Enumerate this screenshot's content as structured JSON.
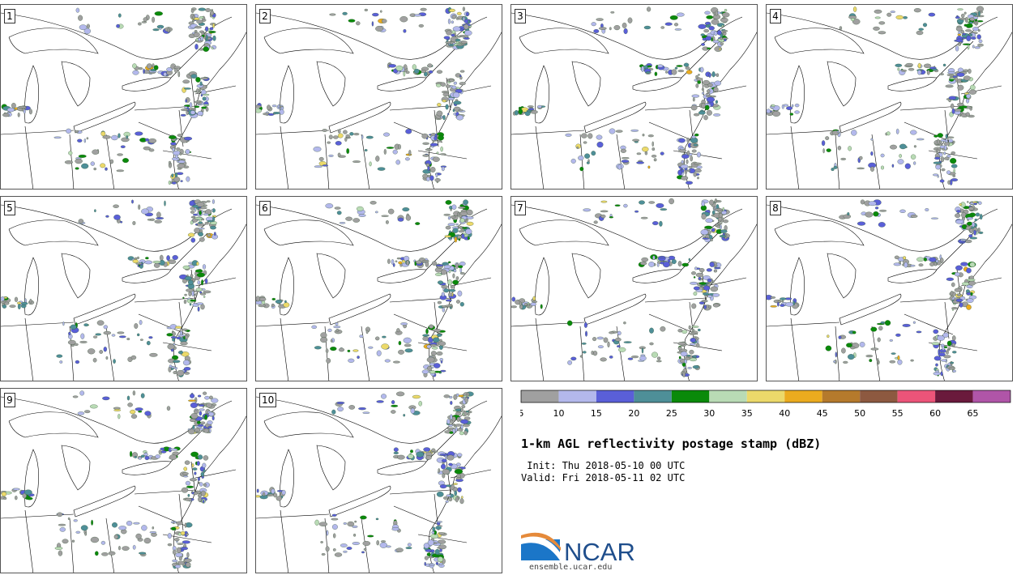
{
  "panels": [
    {
      "label": "1"
    },
    {
      "label": "2"
    },
    {
      "label": "3"
    },
    {
      "label": "4"
    },
    {
      "label": "5"
    },
    {
      "label": "6"
    },
    {
      "label": "7"
    },
    {
      "label": "8"
    },
    {
      "label": "9"
    },
    {
      "label": "10"
    }
  ],
  "colorbar": {
    "tick_labels": [
      "5",
      "10",
      "15",
      "20",
      "25",
      "30",
      "35",
      "40",
      "45",
      "50",
      "55",
      "60",
      "65"
    ],
    "colors": [
      "#a0a0a0",
      "#b3b8ec",
      "#5a5fd8",
      "#4e8f98",
      "#0a8a0a",
      "#b9dbb5",
      "#ecd96a",
      "#ebab1f",
      "#b57a2c",
      "#8d5940",
      "#ec5479",
      "#6a1a3c",
      "#b055a8"
    ]
  },
  "title": "1-km AGL reflectivity postage stamp (dBZ)",
  "init_line": " Init: Thu 2018-05-10 00 UTC",
  "valid_line": "Valid: Fri 2018-05-11 02 UTC",
  "logo": {
    "text": "NCAR",
    "color": "#1f4e8c"
  },
  "site": "ensemble.ucar.edu"
}
